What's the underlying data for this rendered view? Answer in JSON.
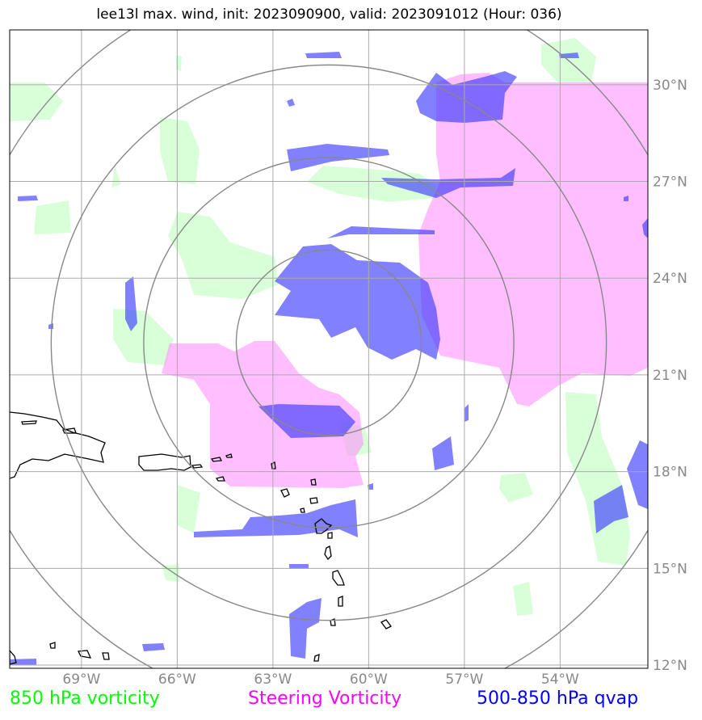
{
  "title": "lee13l max. wind, init: 2023090900, valid: 2023091012 (Hour: 036)",
  "map_extent": {
    "lon_min": -71.25,
    "lon_max": -51.25,
    "lat_min": 11.9,
    "lat_max": 31.7
  },
  "center": {
    "lon": -61.25,
    "lat": 22.0
  },
  "range_ring_radii_deg": [
    2.9,
    5.8,
    8.7,
    11.6
  ],
  "longitudes": [
    {
      "value": -69,
      "label": "69°W"
    },
    {
      "value": -66,
      "label": "66°W"
    },
    {
      "value": -63,
      "label": "63°W"
    },
    {
      "value": -60,
      "label": "60°W"
    },
    {
      "value": -57,
      "label": "57°W"
    },
    {
      "value": -54,
      "label": "54°W"
    }
  ],
  "latitudes": [
    {
      "value": 30,
      "label": "30°N"
    },
    {
      "value": 27,
      "label": "27°N"
    },
    {
      "value": 24,
      "label": "24°N"
    },
    {
      "value": 21,
      "label": "21°N"
    },
    {
      "value": 18,
      "label": "18°N"
    },
    {
      "value": 15,
      "label": "15°N"
    },
    {
      "value": 12,
      "label": "12°N"
    }
  ],
  "legend": [
    {
      "label": "850 hPa vorticity",
      "color": "#00ff00"
    },
    {
      "label": "Steering Vorticity",
      "color": "#ff00ff"
    },
    {
      "label": "500-850 hPa qvap",
      "color": "#0000ff"
    }
  ],
  "colors": {
    "vort850_fill": "#ccffcc",
    "steering_fill": "#ff88ff",
    "qvap_fill": "#3333ff",
    "grid": "#aaaaaa",
    "rings": "#888888",
    "coast": "#000000"
  }
}
